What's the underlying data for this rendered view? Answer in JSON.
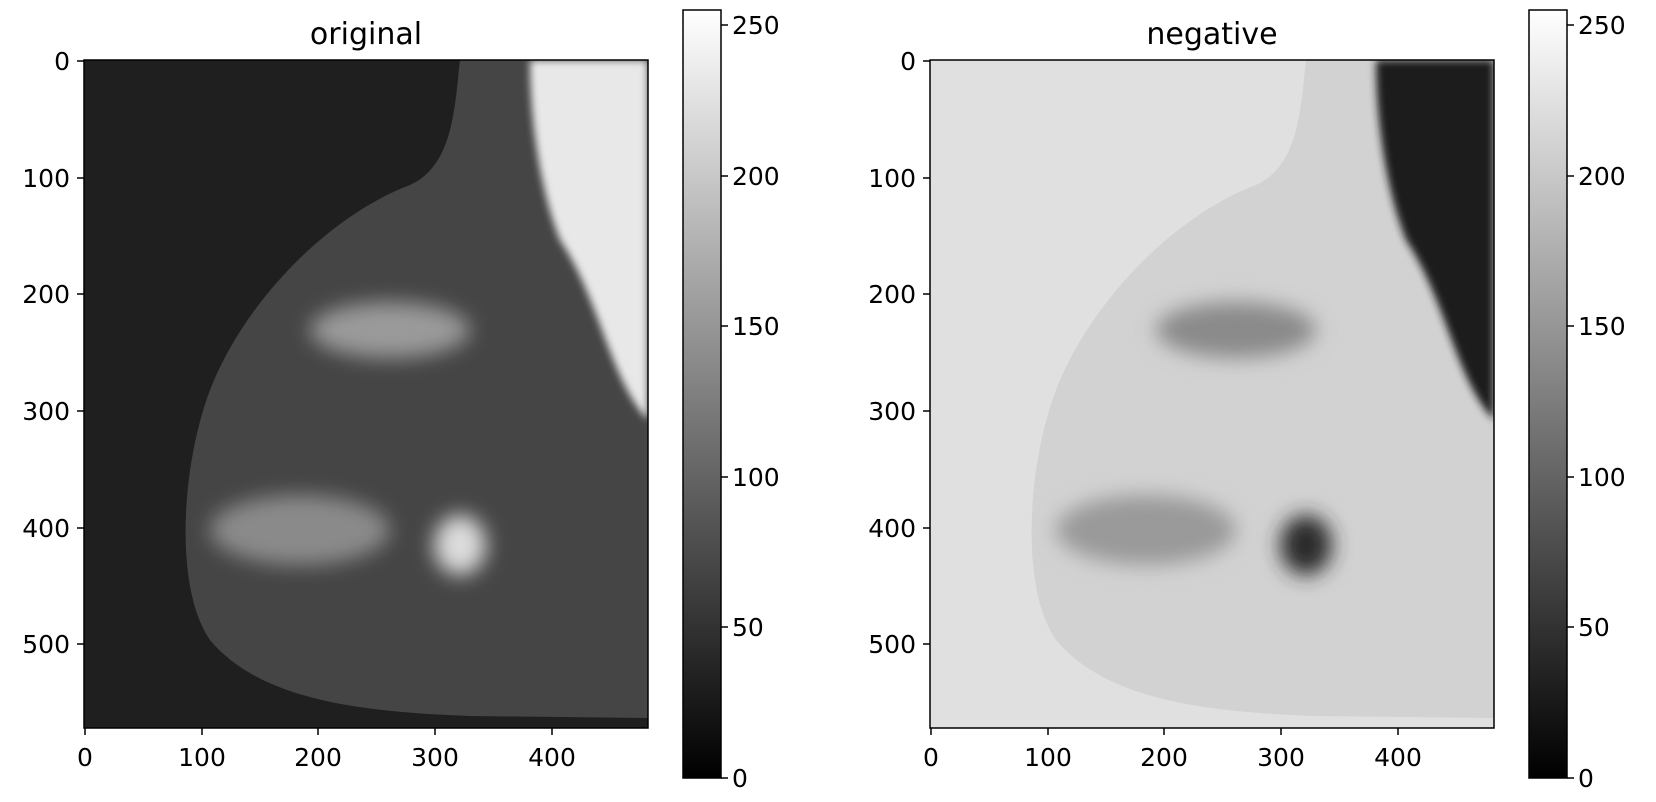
{
  "panels": [
    {
      "title": "original",
      "mode": "original",
      "x_ticks": [
        "0",
        "100",
        "200",
        "300",
        "400"
      ],
      "y_ticks": [
        "0",
        "100",
        "200",
        "300",
        "400",
        "500"
      ],
      "colorbar_ticks": [
        "0",
        "50",
        "100",
        "150",
        "200",
        "250"
      ],
      "colors": {
        "background": "#1f1f1f",
        "tissue": "#4a4a4a",
        "dense": "#c8c8c8",
        "muscle": "#efefef"
      }
    },
    {
      "title": "negative",
      "mode": "negative",
      "x_ticks": [
        "0",
        "100",
        "200",
        "300",
        "400"
      ],
      "y_ticks": [
        "0",
        "100",
        "200",
        "300",
        "400",
        "500"
      ],
      "colorbar_ticks": [
        "0",
        "50",
        "100",
        "150",
        "200",
        "250"
      ],
      "colors": {
        "background": "#e0e0e0",
        "tissue": "#cfcfcf",
        "dense": "#5a5a5a",
        "muscle": "#151515"
      }
    }
  ],
  "colorbar": {
    "colormap": "gray",
    "range": [
      0,
      255
    ]
  }
}
